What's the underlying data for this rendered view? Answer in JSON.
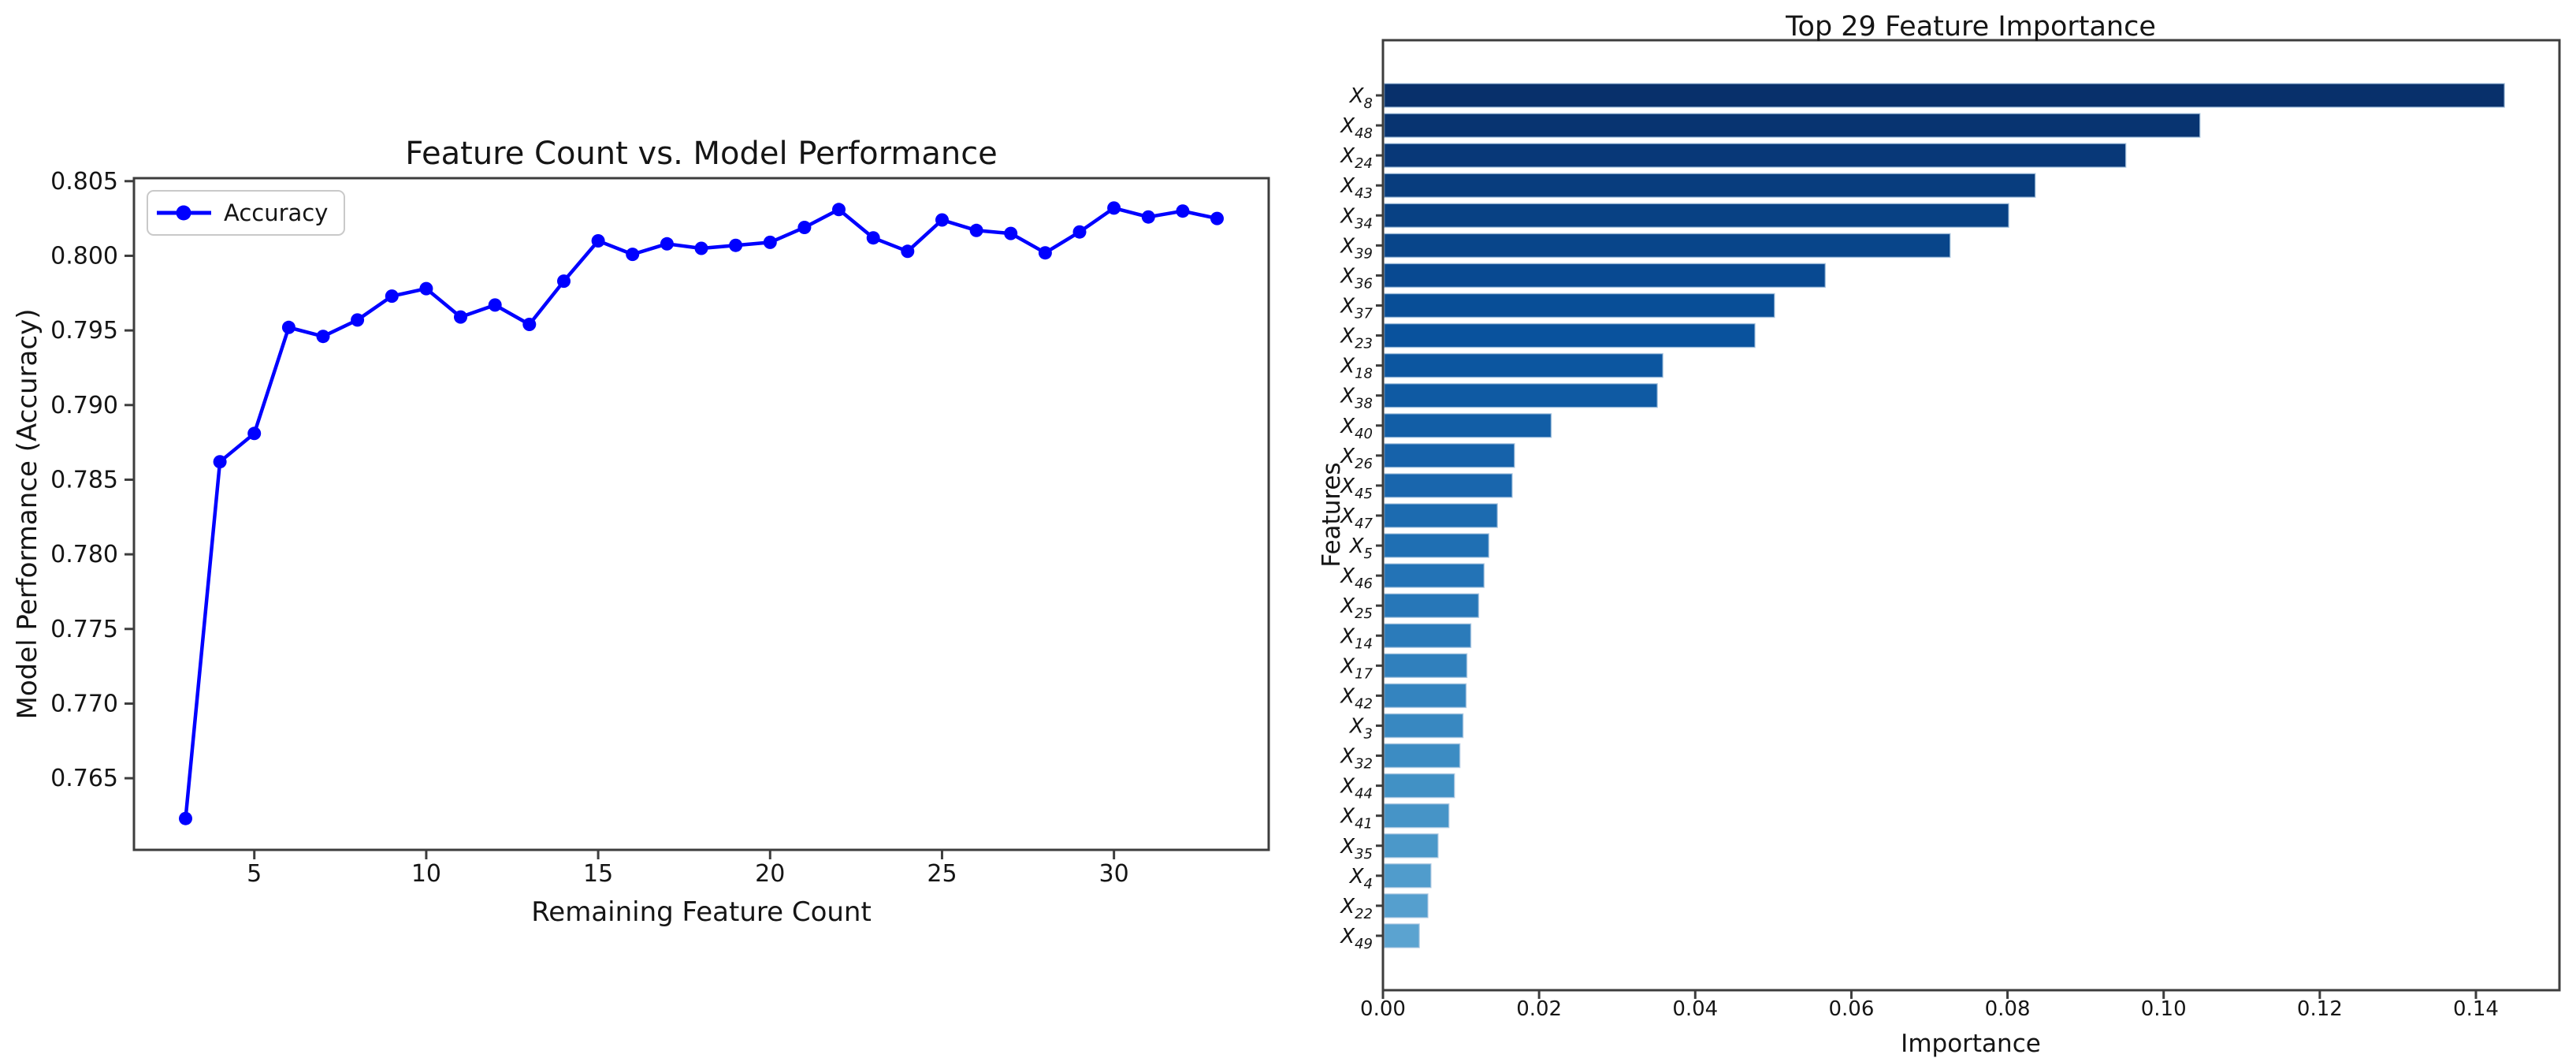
{
  "figure_background": "#ffffff",
  "chart_data": [
    {
      "type": "line",
      "title": "Feature Count vs. Model Performance",
      "xlabel": "Remaining Feature Count",
      "ylabel": "Model Performance (Accuracy)",
      "legend_label": "Accuracy",
      "legend_position": "upper left",
      "line_color": "#0000ff",
      "marker": "circle",
      "grid": false,
      "xlim": [
        1.5,
        34.5
      ],
      "ylim": [
        0.7602,
        0.8052
      ],
      "xticks": [
        5,
        10,
        15,
        20,
        25,
        30
      ],
      "xticklabels": [
        "5",
        "10",
        "15",
        "20",
        "25",
        "30"
      ],
      "yticks": [
        0.765,
        0.77,
        0.775,
        0.78,
        0.785,
        0.79,
        0.795,
        0.8,
        0.805
      ],
      "yticklabels": [
        "0.765",
        "0.770",
        "0.775",
        "0.780",
        "0.785",
        "0.790",
        "0.795",
        "0.800",
        "0.805"
      ],
      "x": [
        3,
        4,
        5,
        6,
        7,
        8,
        9,
        10,
        11,
        12,
        13,
        14,
        15,
        16,
        17,
        18,
        19,
        20,
        21,
        22,
        23,
        24,
        25,
        26,
        27,
        28,
        29,
        30,
        31,
        32,
        33
      ],
      "y": [
        0.7623,
        0.7862,
        0.7881,
        0.7952,
        0.7946,
        0.7957,
        0.7973,
        0.7978,
        0.7959,
        0.7967,
        0.7954,
        0.7983,
        0.801,
        0.8001,
        0.8008,
        0.8005,
        0.8007,
        0.8009,
        0.8019,
        0.8031,
        0.8012,
        0.8003,
        0.8024,
        0.8017,
        0.8015,
        0.8002,
        0.8016,
        0.8032,
        0.8026,
        0.803,
        0.8025
      ]
    },
    {
      "type": "bar",
      "orientation": "horizontal",
      "title": "Top 29 Feature Importance",
      "xlabel": "Importance",
      "ylabel": "Features",
      "grid": false,
      "xlim": [
        0,
        0.1507
      ],
      "xticks": [
        0.0,
        0.02,
        0.04,
        0.06,
        0.08,
        0.1,
        0.12,
        0.14
      ],
      "xticklabels": [
        "0.00",
        "0.02",
        "0.04",
        "0.06",
        "0.08",
        "0.10",
        "0.12",
        "0.14"
      ],
      "categories": [
        "X_8",
        "X_48",
        "X_24",
        "X_43",
        "X_34",
        "X_39",
        "X_36",
        "X_37",
        "X_23",
        "X_18",
        "X_38",
        "X_40",
        "X_26",
        "X_45",
        "X_47",
        "X_5",
        "X_46",
        "X_25",
        "X_14",
        "X_17",
        "X_42",
        "X_3",
        "X_32",
        "X_44",
        "X_41",
        "X_35",
        "X_4",
        "X_22",
        "X_49"
      ],
      "values": [
        0.1435,
        0.1045,
        0.095,
        0.0834,
        0.08,
        0.0725,
        0.0565,
        0.05,
        0.0475,
        0.0357,
        0.035,
        0.0214,
        0.0167,
        0.0164,
        0.0145,
        0.0134,
        0.0128,
        0.0121,
        0.0111,
        0.0106,
        0.0105,
        0.0101,
        0.0097,
        0.009,
        0.0083,
        0.0069,
        0.006,
        0.0056,
        0.0045
      ],
      "bar_colors": [
        "#08306b",
        "#083471",
        "#083878",
        "#083d7e",
        "#084184",
        "#08458a",
        "#084991",
        "#084e97",
        "#09529d",
        "#0c56a0",
        "#0f5aa3",
        "#125ea6",
        "#1662aa",
        "#1966ad",
        "#1c6bb0",
        "#1f6fb3",
        "#2373b6",
        "#2777b8",
        "#2b7bba",
        "#3080bd",
        "#3484bf",
        "#3888c1",
        "#3c8cc3",
        "#4191c5",
        "#4694c7",
        "#4b98c9",
        "#509ccc",
        "#559fce",
        "#5ba3d0"
      ],
      "bar_edge_color": "#a9c6e0"
    }
  ]
}
